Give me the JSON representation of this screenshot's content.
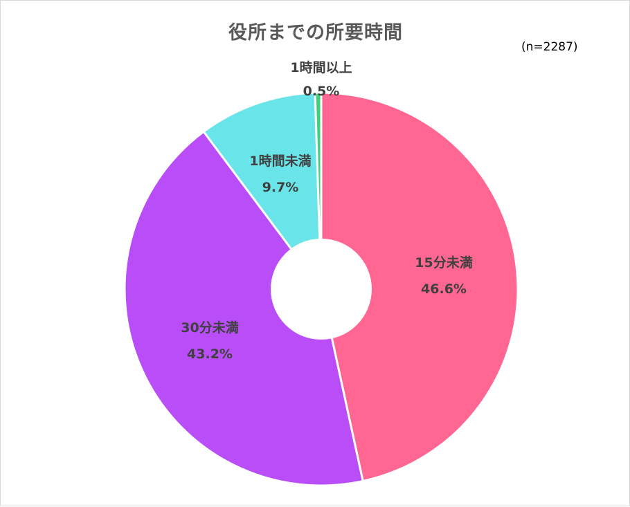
{
  "chart_data": {
    "type": "pie",
    "title": "役所までの所要時間",
    "note": "(n=2287)",
    "donut": true,
    "slices": [
      {
        "label": "15分未満",
        "value": 46.6,
        "value_label": "46.6%",
        "color": "#ff6692"
      },
      {
        "label": "30分未満",
        "value": 43.2,
        "value_label": "43.2%",
        "color": "#b94df7"
      },
      {
        "label": "1時間未満",
        "value": 9.7,
        "value_label": "9.7%",
        "color": "#69e4e8"
      },
      {
        "label": "1時間以上",
        "value": 0.5,
        "value_label": "0.5%",
        "color": "#3fd17a"
      }
    ]
  }
}
